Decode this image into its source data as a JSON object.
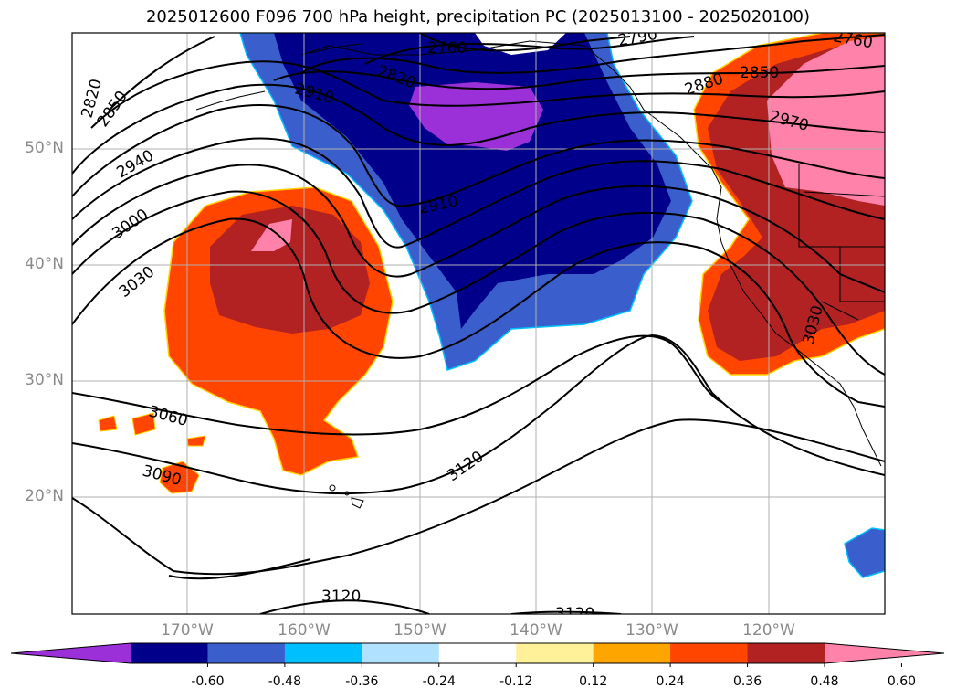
{
  "title": "2025012600 F096 700 hPa height, precipitation PC (2025013100 - 2025020100)",
  "lat_labels": [
    "50°N",
    "40°N",
    "30°N",
    "20°N"
  ],
  "lon_labels": [
    "170°W",
    "160°W",
    "150°W",
    "140°W",
    "130°W",
    "120°W"
  ],
  "contour_labels": [
    "2760",
    "2790",
    "2760",
    "2820",
    "2850",
    "2820",
    "2910",
    "2880",
    "2850",
    "2970",
    "2940",
    "3000",
    "2910",
    "3030",
    "3030",
    "3060",
    "3090",
    "3120",
    "3120",
    "3120"
  ],
  "colorbar": {
    "tick_labels": [
      "-0.60",
      "-0.48",
      "-0.36",
      "-0.24",
      "-0.12",
      "0.12",
      "0.24",
      "0.36",
      "0.48",
      "0.60"
    ],
    "colors": [
      "#9b30d9",
      "#00008b",
      "#3a5fcd",
      "#00bfff",
      "#b0e2ff",
      "#ffffff",
      "#fff09a",
      "#ffa500",
      "#ff4500",
      "#b22222",
      "#ff82ab"
    ]
  }
}
